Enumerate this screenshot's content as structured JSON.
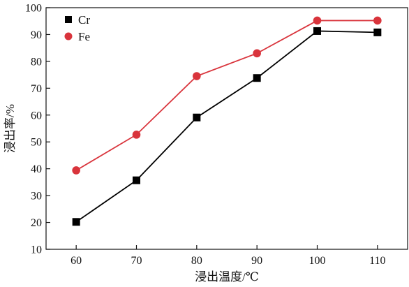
{
  "chart_data": {
    "type": "line",
    "title": "",
    "xlabel": "浸出温度/℃",
    "ylabel": "浸出率/%",
    "x": [
      60,
      70,
      80,
      90,
      100,
      110
    ],
    "xlim": [
      55,
      115
    ],
    "ylim": [
      10,
      100
    ],
    "yticks": [
      10,
      20,
      30,
      40,
      50,
      60,
      70,
      80,
      90,
      100
    ],
    "xticks": [
      60,
      70,
      80,
      90,
      100,
      110
    ],
    "grid": false,
    "legend_position": "top-left",
    "series": [
      {
        "name": "Cr",
        "values": [
          20.2,
          35.7,
          59.1,
          73.8,
          91.3,
          90.8
        ],
        "color": "#000000",
        "marker": "square"
      },
      {
        "name": "Fe",
        "values": [
          39.4,
          52.7,
          74.5,
          83.0,
          95.2,
          95.2
        ],
        "color": "#d9343c",
        "marker": "circle"
      }
    ]
  }
}
